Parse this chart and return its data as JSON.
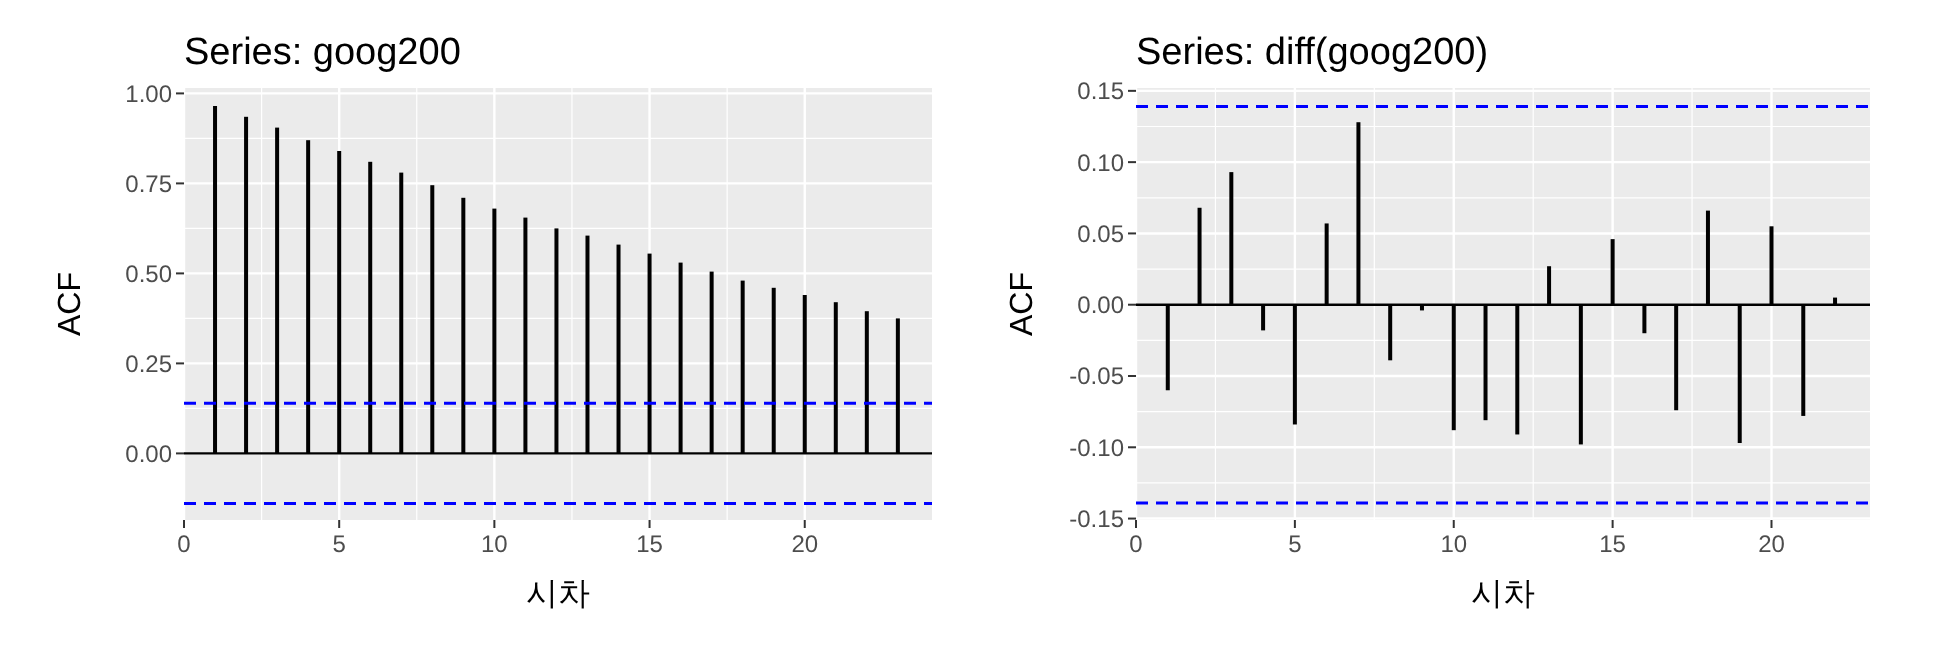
{
  "chart_data": [
    {
      "type": "bar",
      "title": "Series: goog200",
      "xlabel": "시차",
      "ylabel": "ACF",
      "x": [
        1,
        2,
        3,
        4,
        5,
        6,
        7,
        8,
        9,
        10,
        11,
        12,
        13,
        14,
        15,
        16,
        17,
        18,
        19,
        20,
        21,
        22,
        23
      ],
      "values": [
        0.965,
        0.935,
        0.905,
        0.87,
        0.84,
        0.81,
        0.78,
        0.745,
        0.71,
        0.68,
        0.655,
        0.625,
        0.605,
        0.58,
        0.555,
        0.53,
        0.505,
        0.48,
        0.46,
        0.44,
        0.42,
        0.395,
        0.375
      ],
      "color": "#000000",
      "xlim": [
        0,
        24.1
      ],
      "xticks": [
        0,
        5,
        10,
        15,
        20
      ],
      "ylim": [
        -0.185,
        1.015
      ],
      "yticks": [
        {
          "value": 0,
          "label": "0.00"
        },
        {
          "value": 0.25,
          "label": "0.25"
        },
        {
          "value": 0.5,
          "label": "0.50"
        },
        {
          "value": 0.75,
          "label": "0.75"
        },
        {
          "value": 1,
          "label": "1.00"
        }
      ],
      "ref_lines": [
        {
          "axis": "y",
          "value": 0.139,
          "color": "#0000ff",
          "line_style": "dashed"
        },
        {
          "axis": "y",
          "value": -0.139,
          "color": "#0000ff",
          "line_style": "dashed"
        }
      ],
      "grid": true
    },
    {
      "type": "bar",
      "title": "Series: diff(goog200)",
      "xlabel": "시차",
      "ylabel": "ACF",
      "x": [
        1,
        2,
        3,
        4,
        5,
        6,
        7,
        8,
        9,
        10,
        11,
        12,
        13,
        14,
        15,
        16,
        17,
        18,
        19,
        20,
        21,
        22
      ],
      "values": [
        -0.06,
        0.068,
        0.093,
        -0.018,
        -0.084,
        0.057,
        0.128,
        -0.039,
        -0.004,
        -0.088,
        -0.081,
        -0.091,
        0.027,
        -0.098,
        0.046,
        -0.02,
        -0.074,
        0.066,
        -0.097,
        0.055,
        -0.078,
        0.005
      ],
      "color": "#000000",
      "xlim": [
        0,
        23.1
      ],
      "xticks": [
        0,
        5,
        10,
        15,
        20
      ],
      "ylim": [
        -0.151,
        0.152
      ],
      "yticks": [
        {
          "value": -0.15,
          "label": "-0.15"
        },
        {
          "value": -0.1,
          "label": "-0.10"
        },
        {
          "value": -0.05,
          "label": "-0.05"
        },
        {
          "value": 0,
          "label": "0.00"
        },
        {
          "value": 0.05,
          "label": "0.05"
        },
        {
          "value": 0.1,
          "label": "0.10"
        },
        {
          "value": 0.15,
          "label": "0.15"
        }
      ],
      "ref_lines": [
        {
          "axis": "y",
          "value": 0.139,
          "color": "#0000ff",
          "line_style": "dashed"
        },
        {
          "axis": "y",
          "value": -0.139,
          "color": "#0000ff",
          "line_style": "dashed"
        }
      ],
      "grid": true
    }
  ]
}
